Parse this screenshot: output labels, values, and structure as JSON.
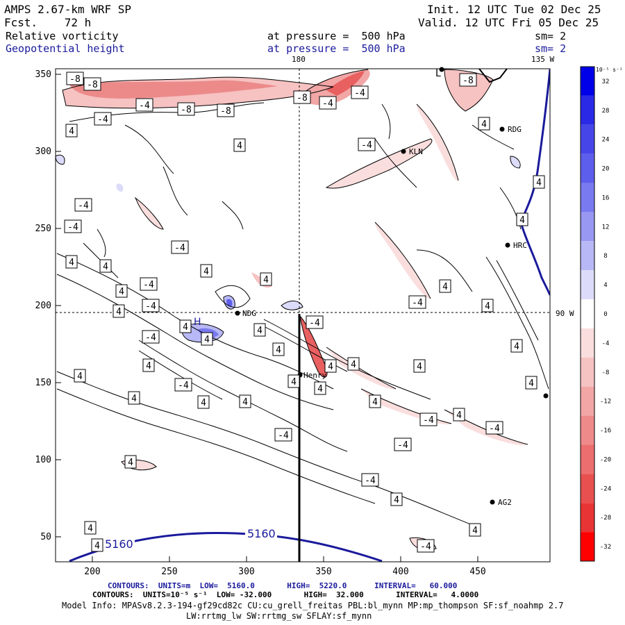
{
  "header": {
    "model": "AMPS 2.67-km WRF SP",
    "forecast": "Fcst.    72 h",
    "init": "Init. 12 UTC Tue 02 Dec 25",
    "valid": "Valid. 12 UTC Fri 05 Dec 25"
  },
  "fields": {
    "field1_name": "Relative vorticity",
    "field1_level": "at pressure =  500 hPa",
    "field1_sm": "sm= 2",
    "field2_name": "Geopotential height",
    "field2_level": "at pressure =  500 hPa",
    "field2_sm": "sm= 2"
  },
  "map": {
    "meridian_label": "180",
    "corner_label": "135 W",
    "parallel_label": "90 W",
    "x_ticks": [
      "200",
      "250",
      "300",
      "350",
      "400",
      "450"
    ],
    "y_ticks": [
      "350",
      "300",
      "250",
      "200",
      "150",
      "100",
      "50"
    ],
    "stations": [
      "RDG",
      "KLN",
      "HRC",
      "NDG",
      "Henry",
      "AG2"
    ],
    "height_contours": [
      "5160",
      "5160"
    ],
    "high_marker": "H",
    "low_marker": "L",
    "vort_labels": [
      "-8",
      "-8",
      "-4",
      "-8",
      "-8",
      "-8",
      "-4",
      "-4",
      "-8",
      "-4",
      "4",
      "4",
      "-4",
      "4",
      "4",
      "-4",
      "-4",
      "4",
      "-4",
      "4",
      "4",
      "4",
      "4",
      "-4",
      "4",
      "4",
      "-4",
      "-4",
      "4",
      "-4",
      "4",
      "4",
      "-4",
      "4",
      "4",
      "4",
      "4",
      "4",
      "4",
      "4",
      "4",
      "-4",
      "4",
      "4",
      "4",
      "4",
      "4",
      "4",
      "4",
      "4",
      "-4",
      "-4",
      "-4",
      "4",
      "-4",
      "4",
      "4",
      "-4",
      "4",
      "4",
      "4",
      "-4"
    ]
  },
  "colorbar": {
    "unit": "10⁻⁵ s⁻¹",
    "labels": [
      "32",
      "28",
      "24",
      "20",
      "16",
      "12",
      "8",
      "4",
      "0",
      "-4",
      "-8",
      "-12",
      "-16",
      "-20",
      "-24",
      "-28",
      "-32"
    ],
    "colors": [
      "#0000e8",
      "#2a2ae6",
      "#4646e8",
      "#5e5eec",
      "#7a7af0",
      "#9898f2",
      "#b8b8f6",
      "#dcdcfa",
      "#ffffff",
      "#fadede",
      "#f6c2c2",
      "#f2a6a6",
      "#ef8a8a",
      "#ec6e6e",
      "#e85050",
      "#e83434",
      "#ff0000"
    ]
  },
  "footer": {
    "line1": "CONTOURS:  UNITS=m  LOW=  5160.0       HIGH=  5220.0      INTERVAL=   60.000",
    "line2": "CONTOURS:  UNITS=10⁻⁵ s⁻¹  LOW= -32.000       HIGH=  32.000       INTERVAL=   4.0000",
    "line3": "Model Info: MPASv8.2.3-194-gf29cd82c CU:cu_grell_freitas PBL:bl_mynn MP:mp_thompson SF:sf_noahmp 2.7",
    "line4": "LW:rrtmg_lw SW:rrtmg_sw SFLAY:sf_mynn"
  }
}
